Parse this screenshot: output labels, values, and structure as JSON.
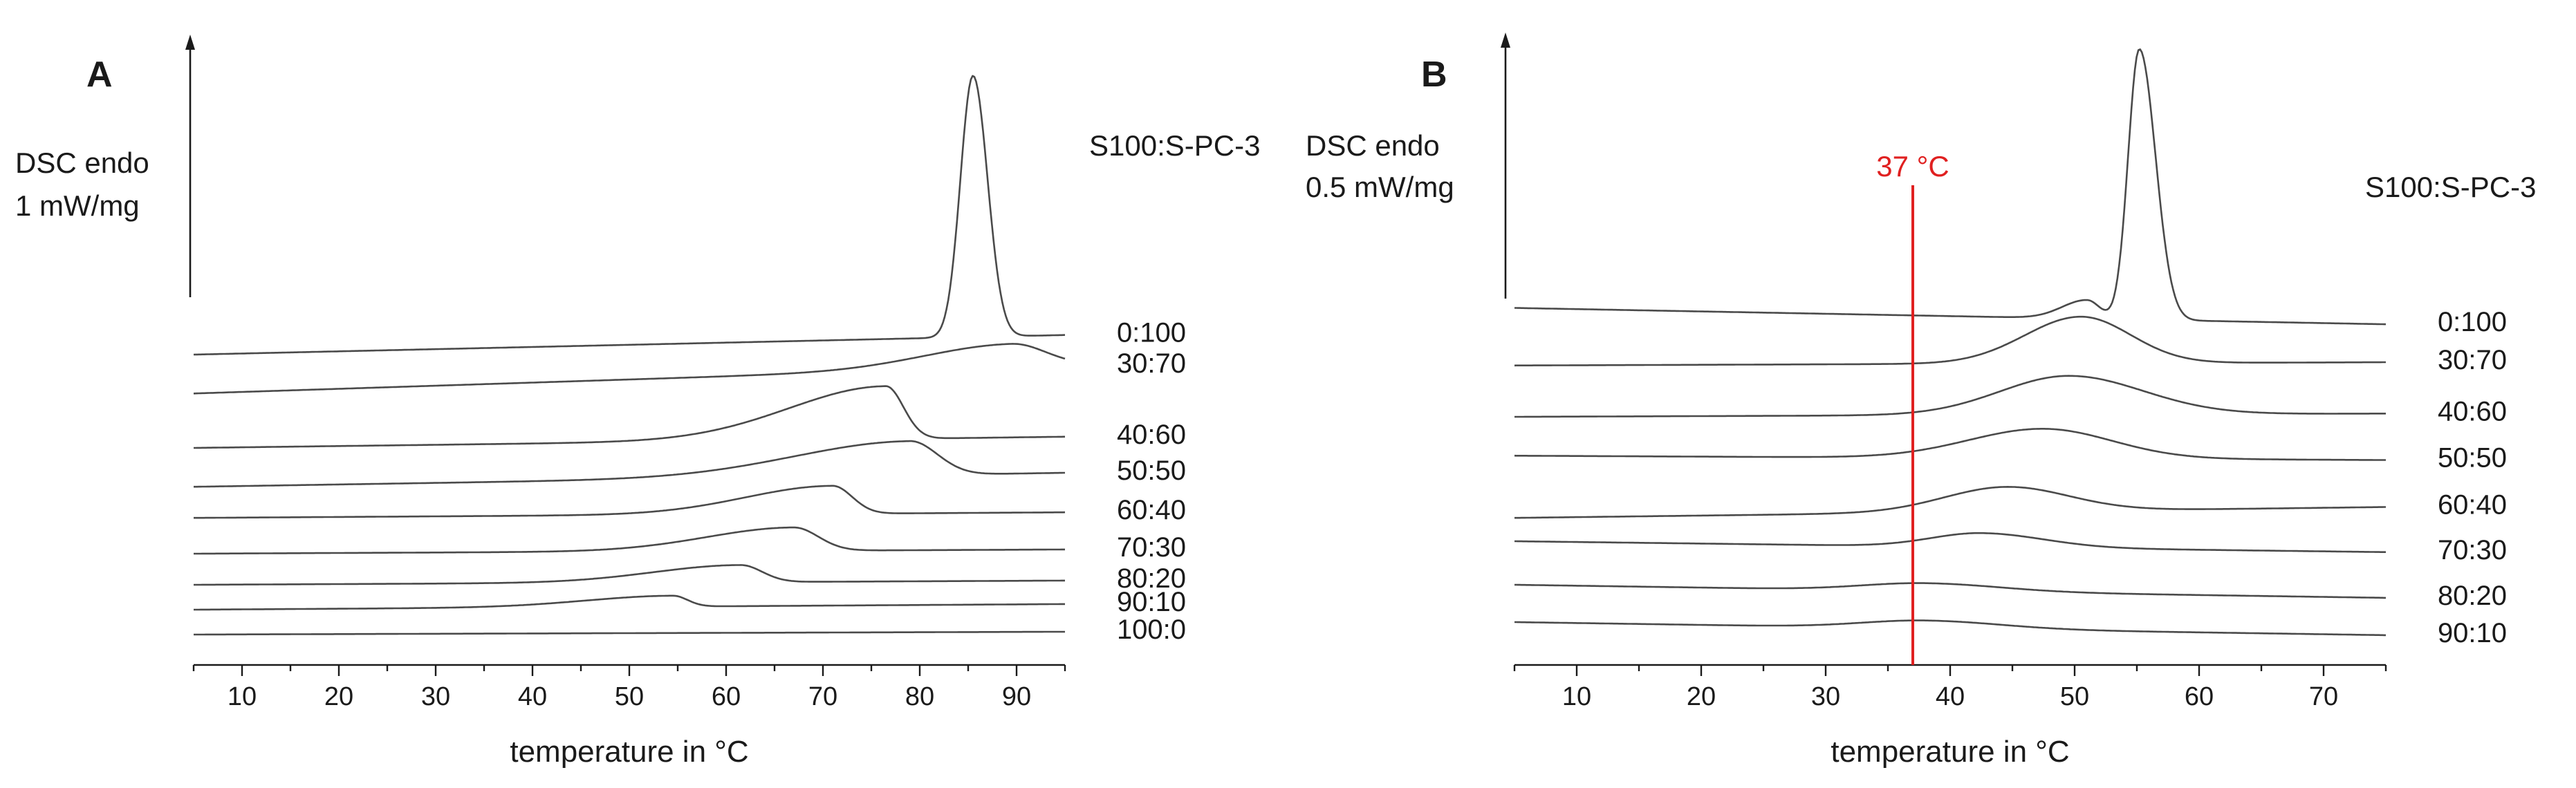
{
  "chart_data": [
    {
      "type": "line",
      "panel_label": "A",
      "xlabel": "temperature in °C",
      "ylabel_line1": "DSC endo",
      "ylabel_line2": "1 mW/mg",
      "legend_title": "S100:S-PC-3",
      "xlim": [
        5,
        95
      ],
      "xticks": [
        10,
        20,
        30,
        40,
        50,
        60,
        70,
        80,
        90
      ],
      "series": [
        {
          "name": "0:100",
          "baseline": 18.0,
          "slope": 0.014,
          "peaks": [
            {
              "center": 85.5,
              "left": 1.3,
              "right": 1.5,
              "height": 16.8
            }
          ]
        },
        {
          "name": "30:70",
          "baseline": 15.5,
          "slope": 0.02,
          "peaks": [
            {
              "center": 89.5,
              "left": 9.0,
              "right": 3.5,
              "height": 1.5
            }
          ]
        },
        {
          "name": "40:60",
          "baseline": 12.0,
          "slope": 0.008,
          "peaks": [
            {
              "center": 76.5,
              "left": 10.0,
              "right": 1.8,
              "height": 3.4
            }
          ]
        },
        {
          "name": "50:50",
          "baseline": 9.5,
          "slope": 0.01,
          "peaks": [
            {
              "center": 79.0,
              "left": 12.0,
              "right": 2.8,
              "height": 2.2
            }
          ]
        },
        {
          "name": "60:40",
          "baseline": 7.5,
          "slope": 0.004,
          "peaks": [
            {
              "center": 71.0,
              "left": 9.0,
              "right": 2.0,
              "height": 1.8
            }
          ]
        },
        {
          "name": "70:30",
          "baseline": 5.2,
          "slope": 0.003,
          "peaks": [
            {
              "center": 67.0,
              "left": 9.0,
              "right": 2.5,
              "height": 1.5
            }
          ]
        },
        {
          "name": "80:20",
          "baseline": 3.2,
          "slope": 0.003,
          "peaks": [
            {
              "center": 61.5,
              "left": 9.0,
              "right": 2.2,
              "height": 1.1
            }
          ]
        },
        {
          "name": "90:10",
          "baseline": 1.6,
          "slope": 0.004,
          "peaks": [
            {
              "center": 54.5,
              "left": 9.0,
              "right": 1.5,
              "height": 0.7
            }
          ]
        },
        {
          "name": "100:0",
          "baseline": 0.0,
          "slope": 0.002,
          "peaks": []
        }
      ]
    },
    {
      "type": "line",
      "panel_label": "B",
      "xlabel": "temperature in °C",
      "ylabel_line1": "DSC endo",
      "ylabel_line2": "0.5 mW/mg",
      "legend_title": "S100:S-PC-3",
      "xlim": [
        5,
        75
      ],
      "xticks": [
        10,
        20,
        30,
        40,
        50,
        60,
        70
      ],
      "annotation": {
        "x": 37,
        "label": "37 °C",
        "color": "#e02020"
      },
      "series": [
        {
          "name": "0:100",
          "baseline": 21.0,
          "slope": -0.015,
          "peaks": [
            {
              "center": 55.2,
              "left": 0.9,
              "right": 1.3,
              "height": 17.4
            },
            {
              "center": 51.0,
              "left": 2.0,
              "right": 1.0,
              "height": 1.2
            }
          ]
        },
        {
          "name": "30:70",
          "baseline": 17.3,
          "slope": 0.003,
          "peaks": [
            {
              "center": 50.5,
              "left": 4.5,
              "right": 4.0,
              "height": 3.0
            }
          ]
        },
        {
          "name": "40:60",
          "baseline": 14.0,
          "slope": 0.003,
          "peaks": [
            {
              "center": 49.5,
              "left": 5.5,
              "right": 6.0,
              "height": 2.5
            }
          ]
        },
        {
          "name": "50:50",
          "baseline": 11.5,
          "slope": -0.004,
          "peaks": [
            {
              "center": 47.5,
              "left": 6.0,
              "right": 5.5,
              "height": 1.9
            }
          ]
        },
        {
          "name": "60:40",
          "baseline": 7.5,
          "slope": 0.01,
          "peaks": [
            {
              "center": 44.5,
              "left": 5.0,
              "right": 5.0,
              "height": 1.6
            }
          ]
        },
        {
          "name": "70:30",
          "baseline": 6.0,
          "slope": -0.01,
          "peaks": [
            {
              "center": 42.5,
              "left": 4.0,
              "right": 5.0,
              "height": 0.9
            }
          ]
        },
        {
          "name": "80:20",
          "baseline": 3.2,
          "slope": -0.012,
          "peaks": [
            {
              "center": 38.0,
              "left": 5.0,
              "right": 6.0,
              "height": 0.5
            }
          ]
        },
        {
          "name": "90:10",
          "baseline": 0.8,
          "slope": -0.012,
          "peaks": [
            {
              "center": 38.0,
              "left": 5.0,
              "right": 6.0,
              "height": 0.5
            }
          ]
        }
      ]
    }
  ]
}
